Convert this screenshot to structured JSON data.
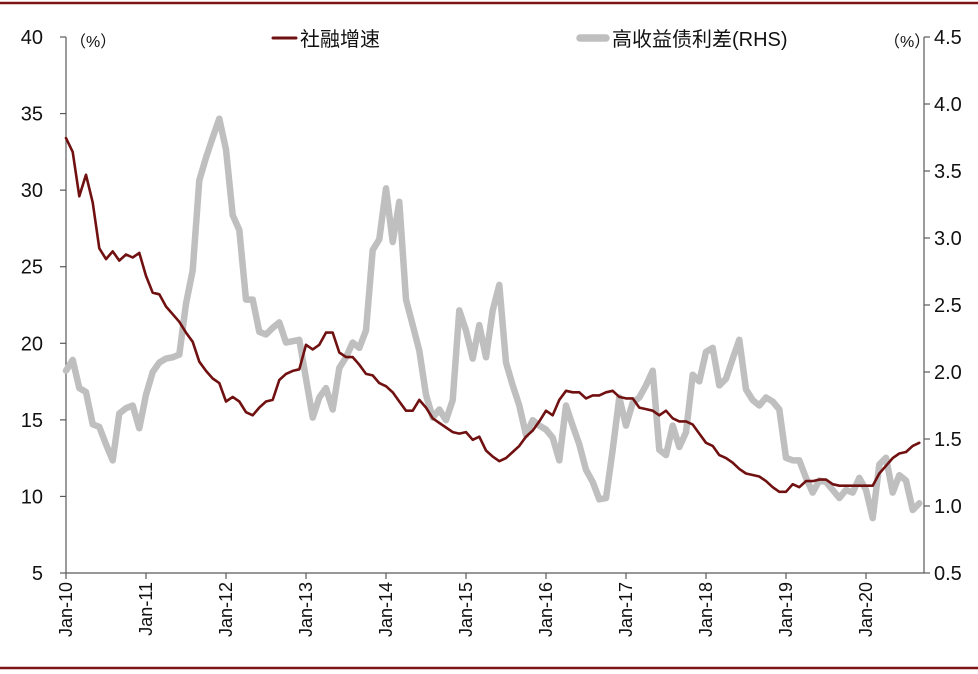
{
  "chart_data": {
    "type": "line",
    "title": "",
    "ylabel_left": "（%）",
    "ylabel_right": "（%）",
    "ylim_left": [
      5,
      40
    ],
    "ylim_right": [
      0.5,
      4.5
    ],
    "y_left_ticks": [
      "40",
      "35",
      "30",
      "25",
      "20",
      "15",
      "10",
      "5"
    ],
    "y_right_ticks": [
      "4.5",
      "4.0",
      "3.5",
      "3.0",
      "2.5",
      "2.0",
      "1.5",
      "1.0",
      "0.5"
    ],
    "xlim": [
      0,
      128.7
    ],
    "x_tick_step": 12,
    "x_ticks": [
      "Jan-10",
      "Jan-11",
      "Jan-12",
      "Jan-13",
      "Jan-14",
      "Jan-15",
      "Jan-16",
      "Jan-17",
      "Jan-18",
      "Jan-19",
      "Jan-20"
    ],
    "legend_position": "top",
    "grid": false,
    "series": [
      {
        "name": "社融增速",
        "axis": "left",
        "color": "#701010",
        "values": [
          33.4,
          32.5,
          29.6,
          31.0,
          29.2,
          26.2,
          25.5,
          26.0,
          25.4,
          25.8,
          25.6,
          25.9,
          24.4,
          23.3,
          23.2,
          22.4,
          21.9,
          21.4,
          20.7,
          20.1,
          18.8,
          18.2,
          17.7,
          17.4,
          16.2,
          16.5,
          16.2,
          15.5,
          15.3,
          15.8,
          16.2,
          16.3,
          17.6,
          18.0,
          18.2,
          18.3,
          19.9,
          19.6,
          19.9,
          20.7,
          20.7,
          19.4,
          19.1,
          19.1,
          18.6,
          18.0,
          17.9,
          17.4,
          17.2,
          16.8,
          16.2,
          15.6,
          15.6,
          16.3,
          15.8,
          15.1,
          14.8,
          14.5,
          14.2,
          14.1,
          14.2,
          13.7,
          13.9,
          13.0,
          12.6,
          12.3,
          12.5,
          12.9,
          13.3,
          13.9,
          14.3,
          14.9,
          15.6,
          15.3,
          16.3,
          16.9,
          16.8,
          16.8,
          16.4,
          16.6,
          16.6,
          16.8,
          16.9,
          16.5,
          16.4,
          16.4,
          15.8,
          15.7,
          15.6,
          15.3,
          15.6,
          15.1,
          14.9,
          14.9,
          14.7,
          14.1,
          13.5,
          13.3,
          12.7,
          12.5,
          12.2,
          11.8,
          11.5,
          11.4,
          11.3,
          11.0,
          10.6,
          10.3,
          10.3,
          10.8,
          10.6,
          11.0,
          11.0,
          11.1,
          11.1,
          10.8,
          10.7,
          10.7,
          10.7,
          10.7,
          10.7,
          10.7,
          11.5,
          12.0,
          12.5,
          12.8,
          12.9,
          13.3,
          13.5
        ]
      },
      {
        "name": "高收益债利差(RHS)",
        "axis": "right",
        "color": "#bfbfbf",
        "values": [
          2.01,
          2.09,
          1.88,
          1.85,
          1.61,
          1.59,
          1.46,
          1.34,
          1.69,
          1.73,
          1.75,
          1.58,
          1.83,
          2.0,
          2.07,
          2.1,
          2.11,
          2.13,
          2.51,
          2.76,
          3.43,
          3.6,
          3.75,
          3.89,
          3.66,
          3.17,
          3.06,
          2.54,
          2.54,
          2.3,
          2.28,
          2.33,
          2.37,
          2.22,
          2.23,
          2.24,
          1.95,
          1.66,
          1.81,
          1.88,
          1.72,
          2.03,
          2.11,
          2.22,
          2.18,
          2.31,
          2.91,
          2.99,
          3.37,
          2.97,
          3.27,
          2.54,
          2.35,
          2.16,
          1.83,
          1.66,
          1.72,
          1.64,
          1.79,
          2.46,
          2.31,
          2.1,
          2.35,
          2.11,
          2.46,
          2.65,
          2.07,
          1.9,
          1.75,
          1.53,
          1.64,
          1.6,
          1.57,
          1.51,
          1.34,
          1.75,
          1.6,
          1.46,
          1.27,
          1.18,
          1.05,
          1.06,
          1.42,
          1.81,
          1.6,
          1.77,
          1.81,
          1.9,
          2.01,
          1.42,
          1.38,
          1.6,
          1.44,
          1.55,
          1.98,
          1.93,
          2.15,
          2.18,
          1.9,
          1.95,
          2.1,
          2.24,
          1.87,
          1.79,
          1.75,
          1.81,
          1.78,
          1.72,
          1.36,
          1.34,
          1.34,
          1.21,
          1.1,
          1.19,
          1.18,
          1.12,
          1.06,
          1.12,
          1.1,
          1.21,
          1.12,
          0.91,
          1.31,
          1.36,
          1.1,
          1.23,
          1.19,
          0.97,
          1.02
        ]
      }
    ]
  },
  "colors": {
    "frame_border": "#7f1414",
    "axis": "#595959",
    "text": "#111111"
  }
}
